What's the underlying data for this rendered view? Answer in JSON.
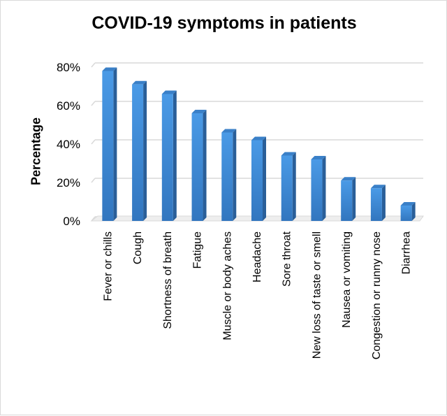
{
  "chart_data": {
    "type": "bar",
    "title": "COVID-19 symptoms in patients",
    "xlabel": "",
    "ylabel": "Percentage",
    "ylim": [
      0,
      80
    ],
    "yticks": [
      "0%",
      "20%",
      "40%",
      "60%",
      "80%"
    ],
    "grid": true,
    "categories": [
      "Fever or chills",
      "Cough",
      "Shortness of breath",
      "Fatigue",
      "Muscle or body aches",
      "Headache",
      "Sore throat",
      "New loss of taste or smell",
      "Nausea or vomiting",
      "Congestion or runny nose",
      "Diarrhea"
    ],
    "values": [
      78,
      71,
      66,
      56,
      46,
      42,
      34,
      32,
      21,
      17,
      8
    ],
    "bar_color": "#3f8fdc"
  }
}
